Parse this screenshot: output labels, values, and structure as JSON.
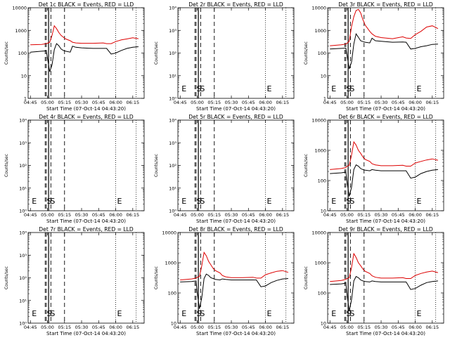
{
  "colors": {
    "events": "#000000",
    "lld": "#dd0000",
    "background": "#ffffff"
  },
  "x_ticks": [
    "04:45",
    "05:00",
    "05:15",
    "05:30",
    "05:45",
    "06:00",
    "06:15"
  ],
  "xlabel": "Start Time (07-Oct-14 04:43:20)",
  "ylabel": "Counts/sec",
  "chart_data": [
    {
      "type": "line",
      "title": "Det 1c BLACK = Events, RED = LLD",
      "yscale": "log",
      "ylim": [
        1,
        10000
      ],
      "y_ticks": [
        "1",
        "10",
        "100",
        "1000",
        "10000"
      ],
      "xlim": [
        "04:43",
        "06:25"
      ],
      "series": [
        {
          "name": "Events",
          "x": [
            "04:45",
            "04:55",
            "04:59",
            "05:00",
            "05:02",
            "05:04",
            "05:06",
            "05:08",
            "05:10",
            "05:12",
            "05:14",
            "05:16",
            "05:20",
            "05:22",
            "05:25",
            "05:30",
            "05:40",
            "05:49",
            "05:52",
            "05:56",
            "06:00",
            "06:05",
            "06:10",
            "06:15",
            "06:20"
          ],
          "values": [
            110,
            120,
            125,
            60,
            15,
            30,
            140,
            260,
            210,
            150,
            130,
            120,
            110,
            200,
            180,
            170,
            160,
            160,
            160,
            90,
            100,
            130,
            160,
            180,
            190
          ]
        },
        {
          "name": "LLD",
          "x": [
            "04:45",
            "04:55",
            "04:59",
            "05:00",
            "05:02",
            "05:04",
            "05:06",
            "05:08",
            "05:10",
            "05:12",
            "05:14",
            "05:16",
            "05:20",
            "05:22",
            "05:25",
            "05:30",
            "05:40",
            "05:49",
            "05:52",
            "05:56",
            "06:00",
            "06:05",
            "06:10",
            "06:15",
            "06:20"
          ],
          "values": [
            230,
            240,
            260,
            270,
            300,
            600,
            1600,
            1200,
            800,
            600,
            500,
            420,
            350,
            300,
            280,
            270,
            270,
            280,
            260,
            260,
            320,
            380,
            420,
            470,
            430
          ]
        }
      ],
      "markers": {
        "dashed": [
          "04:58",
          "04:59",
          "05:03",
          "05:15"
        ],
        "solid": [
          "05:01"
        ],
        "dotted": [
          "06:00",
          "06:18"
        ]
      },
      "labels": []
    },
    {
      "type": "line",
      "title": "Det 2r BLACK = Events, RED = LLD",
      "yscale": "log",
      "ylim": [
        1,
        10000
      ],
      "y_ticks": [
        "10⁰",
        "10¹",
        "10²",
        "10³",
        "10⁴"
      ],
      "xlim": [
        "04:43",
        "06:25"
      ],
      "series": [],
      "markers": {
        "dashed": [
          "04:58",
          "04:59",
          "05:03",
          "05:15"
        ],
        "solid": [
          "05:01"
        ],
        "dotted": [
          "06:00",
          "06:18"
        ]
      },
      "labels": [
        {
          "text": "E",
          "x": "04:45"
        },
        {
          "text": "S",
          "x": "05:00"
        },
        {
          "text": "S",
          "x": "05:03"
        },
        {
          "text": "E",
          "x": "06:00"
        }
      ]
    },
    {
      "type": "line",
      "title": "Det 3r BLACK = Events, RED = LLD",
      "yscale": "log",
      "ylim": [
        1,
        10000
      ],
      "y_ticks": [
        "1",
        "10",
        "100",
        "1000",
        "10000"
      ],
      "xlim": [
        "04:43",
        "06:25"
      ],
      "series": [
        {
          "name": "Events",
          "x": [
            "04:45",
            "04:55",
            "04:59",
            "05:00",
            "05:02",
            "05:04",
            "05:06",
            "05:08",
            "05:10",
            "05:12",
            "05:14",
            "05:16",
            "05:20",
            "05:22",
            "05:25",
            "05:30",
            "05:40",
            "05:49",
            "05:52",
            "05:56",
            "06:00",
            "06:05",
            "06:10",
            "06:15",
            "06:20"
          ],
          "values": [
            150,
            160,
            165,
            80,
            20,
            40,
            250,
            700,
            500,
            350,
            320,
            300,
            280,
            450,
            350,
            330,
            300,
            310,
            300,
            150,
            160,
            190,
            210,
            240,
            250
          ]
        },
        {
          "name": "LLD",
          "x": [
            "04:45",
            "04:55",
            "04:59",
            "05:00",
            "05:02",
            "05:04",
            "05:06",
            "05:08",
            "05:10",
            "05:12",
            "05:14",
            "05:16",
            "05:20",
            "05:22",
            "05:25",
            "05:30",
            "05:40",
            "05:49",
            "05:52",
            "05:56",
            "06:00",
            "06:05",
            "06:10",
            "06:15",
            "06:20"
          ],
          "values": [
            210,
            230,
            250,
            270,
            330,
            1500,
            4000,
            7500,
            8500,
            6000,
            3000,
            1700,
            900,
            700,
            550,
            480,
            430,
            520,
            460,
            440,
            650,
            900,
            1400,
            1600,
            1200
          ]
        }
      ],
      "markers": {
        "dashed": [
          "04:58",
          "04:59",
          "05:03",
          "05:15"
        ],
        "solid": [
          "05:01"
        ],
        "dotted": [
          "06:00",
          "06:18"
        ]
      },
      "labels": [
        {
          "text": "E",
          "x": "04:45"
        },
        {
          "text": "S",
          "x": "05:00"
        },
        {
          "text": "S",
          "x": "05:03"
        },
        {
          "text": "E",
          "x": "06:00"
        }
      ]
    },
    {
      "type": "line",
      "title": "Det 4r BLACK = Events, RED = LLD",
      "yscale": "log",
      "ylim": [
        1,
        10000
      ],
      "y_ticks": [
        "10⁰",
        "10¹",
        "10²",
        "10³",
        "10⁴"
      ],
      "xlim": [
        "04:43",
        "06:25"
      ],
      "series": [],
      "markers": {
        "dashed": [
          "04:58",
          "04:59",
          "05:03",
          "05:15"
        ],
        "solid": [
          "05:01"
        ],
        "dotted": [
          "06:00",
          "06:18"
        ]
      },
      "labels": [
        {
          "text": "E",
          "x": "04:45"
        },
        {
          "text": "S",
          "x": "05:00"
        },
        {
          "text": "S",
          "x": "05:03"
        },
        {
          "text": "E",
          "x": "06:00"
        }
      ]
    },
    {
      "type": "line",
      "title": "Det 5r BLACK = Events, RED = LLD",
      "yscale": "log",
      "ylim": [
        1,
        10000
      ],
      "y_ticks": [
        "10⁰",
        "10¹",
        "10²",
        "10³",
        "10⁴"
      ],
      "xlim": [
        "04:43",
        "06:25"
      ],
      "series": [],
      "markers": {
        "dashed": [
          "04:58",
          "04:59",
          "05:03",
          "05:15"
        ],
        "solid": [
          "05:01"
        ],
        "dotted": [
          "06:00",
          "06:18"
        ]
      },
      "labels": [
        {
          "text": "E",
          "x": "04:45"
        },
        {
          "text": "S",
          "x": "05:00"
        },
        {
          "text": "S",
          "x": "05:03"
        },
        {
          "text": "E",
          "x": "06:00"
        }
      ]
    },
    {
      "type": "line",
      "title": "Det 6r BLACK = Events, RED = LLD",
      "yscale": "log",
      "ylim": [
        10,
        10000
      ],
      "y_ticks": [
        "10",
        "100",
        "1000",
        "10000"
      ],
      "xlim": [
        "04:43",
        "06:25"
      ],
      "series": [
        {
          "name": "Events",
          "x": [
            "04:45",
            "04:55",
            "04:59",
            "05:00",
            "05:02",
            "05:04",
            "05:06",
            "05:08",
            "05:10",
            "05:12",
            "05:14",
            "05:16",
            "05:20",
            "05:22",
            "05:25",
            "05:30",
            "05:40",
            "05:49",
            "05:52",
            "05:56",
            "06:00",
            "06:05",
            "06:10",
            "06:15",
            "06:20"
          ],
          "values": [
            170,
            180,
            190,
            90,
            30,
            60,
            230,
            330,
            300,
            250,
            230,
            220,
            210,
            230,
            220,
            210,
            210,
            210,
            210,
            120,
            130,
            170,
            200,
            220,
            230
          ]
        },
        {
          "name": "LLD",
          "x": [
            "04:45",
            "04:55",
            "04:59",
            "05:00",
            "05:02",
            "05:04",
            "05:06",
            "05:08",
            "05:10",
            "05:12",
            "05:14",
            "05:16",
            "05:20",
            "05:22",
            "05:25",
            "05:30",
            "05:40",
            "05:49",
            "05:52",
            "05:56",
            "06:00",
            "06:05",
            "06:10",
            "06:15",
            "06:20"
          ],
          "values": [
            230,
            250,
            270,
            300,
            320,
            700,
            1900,
            1500,
            1000,
            800,
            600,
            500,
            430,
            360,
            330,
            310,
            310,
            320,
            300,
            300,
            380,
            430,
            480,
            520,
            470
          ]
        }
      ],
      "markers": {
        "dashed": [
          "04:58",
          "04:59",
          "05:03",
          "05:15"
        ],
        "solid": [
          "05:01"
        ],
        "dotted": [
          "06:00",
          "06:18"
        ]
      },
      "labels": [
        {
          "text": "E",
          "x": "04:45"
        },
        {
          "text": "S",
          "x": "05:00"
        },
        {
          "text": "S",
          "x": "05:03"
        },
        {
          "text": "E",
          "x": "06:00"
        }
      ]
    },
    {
      "type": "line",
      "title": "Det 7r BLACK = Events, RED = LLD",
      "yscale": "log",
      "ylim": [
        1,
        10000
      ],
      "y_ticks": [
        "10⁰",
        "10¹",
        "10²",
        "10³",
        "10⁴"
      ],
      "xlim": [
        "04:43",
        "06:25"
      ],
      "series": [],
      "markers": {
        "dashed": [
          "04:58",
          "04:59",
          "05:03",
          "05:15"
        ],
        "solid": [
          "05:01"
        ],
        "dotted": [
          "06:00",
          "06:18"
        ]
      },
      "labels": [
        {
          "text": "E",
          "x": "04:45"
        },
        {
          "text": "S",
          "x": "05:00"
        },
        {
          "text": "S",
          "x": "05:03"
        },
        {
          "text": "E",
          "x": "06:00"
        }
      ]
    },
    {
      "type": "line",
      "title": "Det 8r BLACK = Events, RED = LLD",
      "yscale": "log",
      "ylim": [
        10,
        10000
      ],
      "y_ticks": [
        "10",
        "100",
        "1000",
        "10000"
      ],
      "xlim": [
        "04:43",
        "06:25"
      ],
      "series": [
        {
          "name": "Events",
          "x": [
            "04:45",
            "04:55",
            "04:59",
            "05:00",
            "05:02",
            "05:04",
            "05:06",
            "05:08",
            "05:10",
            "05:12",
            "05:14",
            "05:16",
            "05:20",
            "05:22",
            "05:25",
            "05:30",
            "05:40",
            "05:49",
            "05:52",
            "05:56",
            "06:00",
            "06:05",
            "06:10",
            "06:15",
            "06:20"
          ],
          "values": [
            230,
            240,
            250,
            100,
            30,
            70,
            300,
            420,
            380,
            320,
            300,
            280,
            270,
            290,
            280,
            270,
            270,
            270,
            270,
            160,
            170,
            220,
            260,
            290,
            300
          ]
        },
        {
          "name": "LLD",
          "x": [
            "04:45",
            "04:55",
            "04:59",
            "05:00",
            "05:02",
            "05:04",
            "05:06",
            "05:08",
            "05:10",
            "05:12",
            "05:14",
            "05:16",
            "05:20",
            "05:22",
            "05:25",
            "05:30",
            "05:40",
            "05:49",
            "05:52",
            "05:56",
            "06:00",
            "06:05",
            "06:10",
            "06:15",
            "06:20"
          ],
          "values": [
            270,
            290,
            310,
            330,
            350,
            800,
            2200,
            1700,
            1100,
            850,
            650,
            550,
            460,
            380,
            340,
            320,
            320,
            330,
            310,
            310,
            400,
            460,
            520,
            550,
            480
          ]
        }
      ],
      "markers": {
        "dashed": [
          "04:58",
          "04:59",
          "05:03",
          "05:15"
        ],
        "solid": [
          "05:01"
        ],
        "dotted": [
          "06:00",
          "06:18"
        ]
      },
      "labels": [
        {
          "text": "E",
          "x": "04:45"
        },
        {
          "text": "S",
          "x": "05:00"
        },
        {
          "text": "S",
          "x": "05:03"
        },
        {
          "text": "E",
          "x": "06:00"
        }
      ]
    },
    {
      "type": "line",
      "title": "Det 9r BLACK = Events, RED = LLD",
      "yscale": "log",
      "ylim": [
        10,
        10000
      ],
      "y_ticks": [
        "10",
        "100",
        "1000",
        "10000"
      ],
      "xlim": [
        "04:43",
        "06:25"
      ],
      "series": [
        {
          "name": "Events",
          "x": [
            "04:45",
            "04:55",
            "04:59",
            "05:00",
            "05:02",
            "05:04",
            "05:06",
            "05:08",
            "05:10",
            "05:12",
            "05:14",
            "05:16",
            "05:20",
            "05:22",
            "05:25",
            "05:30",
            "05:40",
            "05:49",
            "05:52",
            "05:56",
            "06:00",
            "06:05",
            "06:10",
            "06:15",
            "06:20"
          ],
          "values": [
            190,
            200,
            210,
            90,
            25,
            60,
            250,
            350,
            320,
            270,
            250,
            240,
            230,
            250,
            240,
            230,
            230,
            230,
            230,
            130,
            140,
            180,
            220,
            240,
            250
          ]
        },
        {
          "name": "LLD",
          "x": [
            "04:45",
            "04:55",
            "04:59",
            "05:00",
            "05:02",
            "05:04",
            "05:06",
            "05:08",
            "05:10",
            "05:12",
            "05:14",
            "05:16",
            "05:20",
            "05:22",
            "05:25",
            "05:30",
            "05:40",
            "05:49",
            "05:52",
            "05:56",
            "06:00",
            "06:05",
            "06:10",
            "06:15",
            "06:20"
          ],
          "values": [
            240,
            260,
            280,
            300,
            320,
            700,
            2000,
            1500,
            1000,
            800,
            620,
            520,
            440,
            370,
            330,
            310,
            310,
            320,
            300,
            300,
            380,
            440,
            490,
            530,
            470
          ]
        }
      ],
      "markers": {
        "dashed": [
          "04:58",
          "04:59",
          "05:03",
          "05:15"
        ],
        "solid": [
          "05:01"
        ],
        "dotted": [
          "06:00",
          "06:18"
        ]
      },
      "labels": [
        {
          "text": "E",
          "x": "04:45"
        },
        {
          "text": "S",
          "x": "05:00"
        },
        {
          "text": "S",
          "x": "05:03"
        },
        {
          "text": "E",
          "x": "06:00"
        }
      ]
    }
  ]
}
